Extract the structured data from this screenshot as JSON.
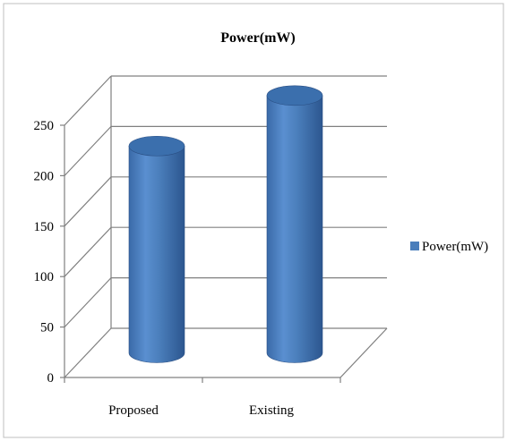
{
  "chart_data": {
    "type": "bar",
    "title": "Power(mW)",
    "categories": [
      "Proposed",
      "Existing"
    ],
    "series": [
      {
        "name": "Power(mW)",
        "values": [
          205,
          255
        ]
      }
    ],
    "xlabel": "",
    "ylabel": "",
    "ylim": [
      0,
      250
    ],
    "yticks": [
      0,
      50,
      100,
      150,
      200,
      250
    ],
    "grid": true,
    "legend": "right",
    "bar_color": "#4a7ebb",
    "bar_dark": "#2d5a96",
    "bar_top": "#3b6fad",
    "bar_style": "3d-cylinder"
  }
}
